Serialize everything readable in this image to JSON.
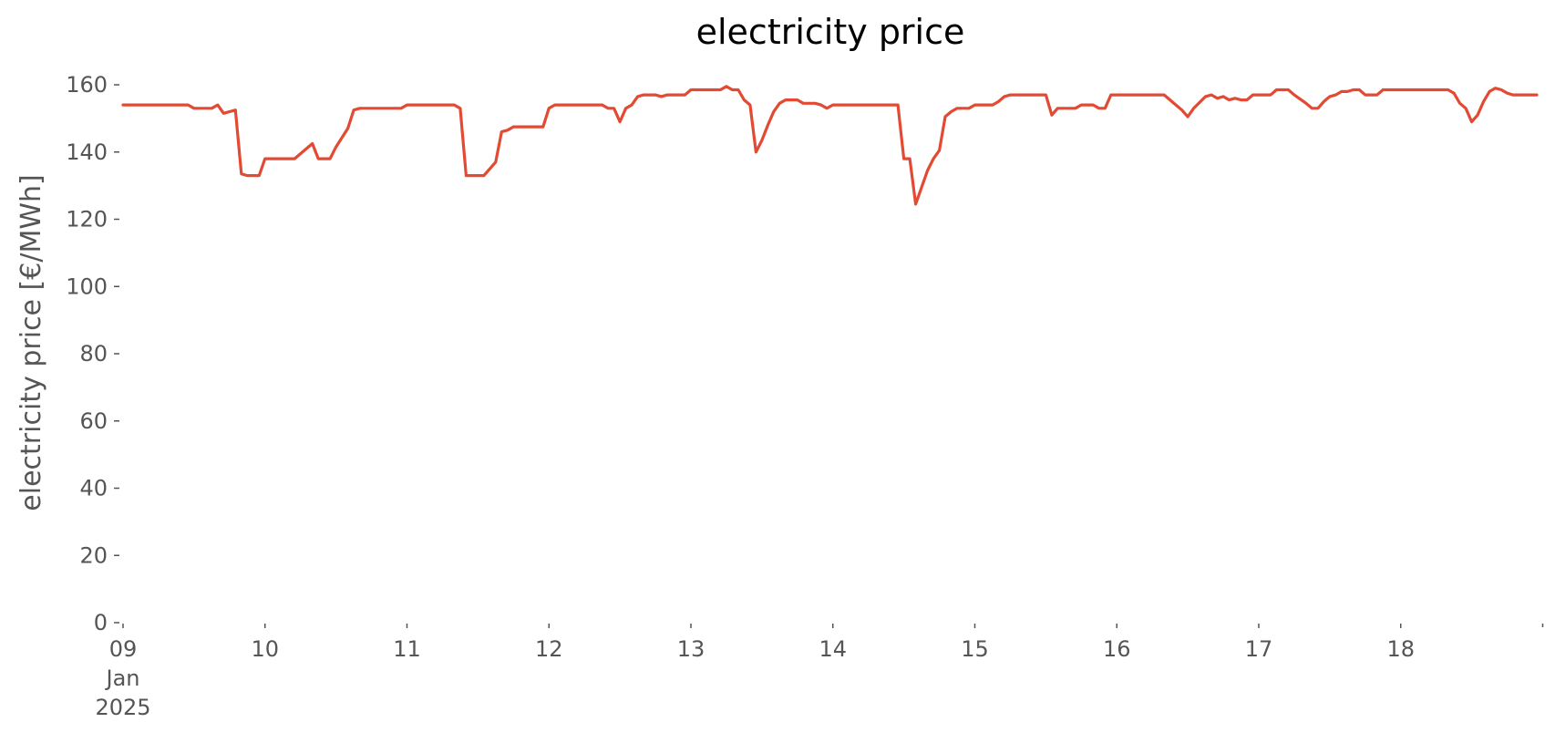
{
  "chart_data": {
    "type": "line",
    "title": "electricity price",
    "xlabel": "",
    "ylabel": "electricity price [€/MWh]",
    "ylim": [
      0,
      160
    ],
    "yticks": [
      0,
      20,
      40,
      60,
      80,
      100,
      120,
      140,
      160
    ],
    "xlim": [
      "2025-01-09T00:00",
      "2025-01-18T23:00"
    ],
    "x_ticks": [
      {
        "date": "2025-01-09T00:00",
        "lines": [
          "09",
          "Jan",
          "2025"
        ]
      },
      {
        "date": "2025-01-10T00:00",
        "lines": [
          "10"
        ]
      },
      {
        "date": "2025-01-11T00:00",
        "lines": [
          "11"
        ]
      },
      {
        "date": "2025-01-12T00:00",
        "lines": [
          "12"
        ]
      },
      {
        "date": "2025-01-13T00:00",
        "lines": [
          "13"
        ]
      },
      {
        "date": "2025-01-14T00:00",
        "lines": [
          "14"
        ]
      },
      {
        "date": "2025-01-15T00:00",
        "lines": [
          "15"
        ]
      },
      {
        "date": "2025-01-16T00:00",
        "lines": [
          "16"
        ]
      },
      {
        "date": "2025-01-17T00:00",
        "lines": [
          "17"
        ]
      },
      {
        "date": "2025-01-18T00:00",
        "lines": [
          "18"
        ]
      }
    ],
    "x_minor_ticks": [
      "2025-01-19T00:00"
    ],
    "grid": false,
    "series": [
      {
        "color": "#e24a33",
        "points": [
          [
            "2025-01-09T00:00",
            154
          ],
          [
            "2025-01-09T11:00",
            154
          ],
          [
            "2025-01-09T12:00",
            153
          ],
          [
            "2025-01-09T15:00",
            153
          ],
          [
            "2025-01-09T16:00",
            154
          ],
          [
            "2025-01-09T17:00",
            151.5
          ],
          [
            "2025-01-09T19:00",
            152.5
          ],
          [
            "2025-01-09T20:00",
            133.5
          ],
          [
            "2025-01-09T21:00",
            133
          ],
          [
            "2025-01-09T23:00",
            133
          ],
          [
            "2025-01-10T00:00",
            138
          ],
          [
            "2025-01-10T05:00",
            138
          ],
          [
            "2025-01-10T08:00",
            142.5
          ],
          [
            "2025-01-10T09:00",
            138
          ],
          [
            "2025-01-10T11:00",
            138
          ],
          [
            "2025-01-10T12:00",
            141.5
          ],
          [
            "2025-01-10T14:00",
            147
          ],
          [
            "2025-01-10T15:00",
            152.5
          ],
          [
            "2025-01-10T16:00",
            153
          ],
          [
            "2025-01-10T23:00",
            153
          ],
          [
            "2025-01-11T00:00",
            154
          ],
          [
            "2025-01-11T08:00",
            154
          ],
          [
            "2025-01-11T09:00",
            153
          ],
          [
            "2025-01-11T10:00",
            133
          ],
          [
            "2025-01-11T13:00",
            133
          ],
          [
            "2025-01-11T15:00",
            137
          ],
          [
            "2025-01-11T16:00",
            146
          ],
          [
            "2025-01-11T17:00",
            146.5
          ],
          [
            "2025-01-11T18:00",
            147.5
          ],
          [
            "2025-01-11T23:00",
            147.5
          ],
          [
            "2025-01-12T00:00",
            153
          ],
          [
            "2025-01-12T01:00",
            154
          ],
          [
            "2025-01-12T09:00",
            154
          ],
          [
            "2025-01-12T10:00",
            153
          ],
          [
            "2025-01-12T11:00",
            153
          ],
          [
            "2025-01-12T12:00",
            149
          ],
          [
            "2025-01-12T13:00",
            153
          ],
          [
            "2025-01-12T14:00",
            154
          ],
          [
            "2025-01-12T15:00",
            156.5
          ],
          [
            "2025-01-12T16:00",
            157
          ],
          [
            "2025-01-12T18:00",
            157
          ],
          [
            "2025-01-12T19:00",
            156.5
          ],
          [
            "2025-01-12T20:00",
            157
          ],
          [
            "2025-01-12T23:00",
            157
          ],
          [
            "2025-01-13T00:00",
            158.5
          ],
          [
            "2025-01-13T05:00",
            158.5
          ],
          [
            "2025-01-13T06:00",
            159.5
          ],
          [
            "2025-01-13T07:00",
            158.5
          ],
          [
            "2025-01-13T08:00",
            158.5
          ],
          [
            "2025-01-13T09:00",
            155.5
          ],
          [
            "2025-01-13T10:00",
            154
          ],
          [
            "2025-01-13T11:00",
            140
          ],
          [
            "2025-01-13T12:00",
            143.5
          ],
          [
            "2025-01-13T13:00",
            148
          ],
          [
            "2025-01-13T14:00",
            152
          ],
          [
            "2025-01-13T15:00",
            154.5
          ],
          [
            "2025-01-13T16:00",
            155.5
          ],
          [
            "2025-01-13T18:00",
            155.5
          ],
          [
            "2025-01-13T19:00",
            154.5
          ],
          [
            "2025-01-13T21:00",
            154.5
          ],
          [
            "2025-01-13T22:00",
            154
          ],
          [
            "2025-01-13T23:00",
            153
          ],
          [
            "2025-01-14T00:00",
            154
          ],
          [
            "2025-01-14T11:00",
            154
          ],
          [
            "2025-01-14T12:00",
            138
          ],
          [
            "2025-01-14T13:00",
            138
          ],
          [
            "2025-01-14T14:00",
            124.5
          ],
          [
            "2025-01-14T15:00",
            129.5
          ],
          [
            "2025-01-14T16:00",
            134.5
          ],
          [
            "2025-01-14T17:00",
            138
          ],
          [
            "2025-01-14T18:00",
            140.5
          ],
          [
            "2025-01-14T19:00",
            150.5
          ],
          [
            "2025-01-14T20:00",
            152
          ],
          [
            "2025-01-14T21:00",
            153
          ],
          [
            "2025-01-14T23:00",
            153
          ],
          [
            "2025-01-15T00:00",
            154
          ],
          [
            "2025-01-15T03:00",
            154
          ],
          [
            "2025-01-15T04:00",
            155
          ],
          [
            "2025-01-15T05:00",
            156.5
          ],
          [
            "2025-01-15T06:00",
            157
          ],
          [
            "2025-01-15T12:00",
            157
          ],
          [
            "2025-01-15T13:00",
            151
          ],
          [
            "2025-01-15T14:00",
            153
          ],
          [
            "2025-01-15T17:00",
            153
          ],
          [
            "2025-01-15T18:00",
            154
          ],
          [
            "2025-01-15T20:00",
            154
          ],
          [
            "2025-01-15T21:00",
            153
          ],
          [
            "2025-01-15T22:00",
            153
          ],
          [
            "2025-01-15T23:00",
            157
          ],
          [
            "2025-01-16T00:00",
            157
          ],
          [
            "2025-01-16T08:00",
            157
          ],
          [
            "2025-01-16T09:00",
            155.5
          ],
          [
            "2025-01-16T11:00",
            152.5
          ],
          [
            "2025-01-16T12:00",
            150.5
          ],
          [
            "2025-01-16T13:00",
            153
          ],
          [
            "2025-01-16T15:00",
            156.5
          ],
          [
            "2025-01-16T16:00",
            157
          ],
          [
            "2025-01-16T17:00",
            156
          ],
          [
            "2025-01-16T18:00",
            156.5
          ],
          [
            "2025-01-16T19:00",
            155.5
          ],
          [
            "2025-01-16T20:00",
            156
          ],
          [
            "2025-01-16T21:00",
            155.5
          ],
          [
            "2025-01-16T22:00",
            155.5
          ],
          [
            "2025-01-16T23:00",
            157
          ],
          [
            "2025-01-17T00:00",
            157
          ],
          [
            "2025-01-17T02:00",
            157
          ],
          [
            "2025-01-17T03:00",
            158.5
          ],
          [
            "2025-01-17T05:00",
            158.5
          ],
          [
            "2025-01-17T06:00",
            157
          ],
          [
            "2025-01-17T08:00",
            154.5
          ],
          [
            "2025-01-17T09:00",
            153
          ],
          [
            "2025-01-17T10:00",
            153
          ],
          [
            "2025-01-17T11:00",
            155
          ],
          [
            "2025-01-17T12:00",
            156.5
          ],
          [
            "2025-01-17T13:00",
            157
          ],
          [
            "2025-01-17T14:00",
            158
          ],
          [
            "2025-01-17T15:00",
            158
          ],
          [
            "2025-01-17T16:00",
            158.5
          ],
          [
            "2025-01-17T17:00",
            158.5
          ],
          [
            "2025-01-17T18:00",
            157
          ],
          [
            "2025-01-17T19:00",
            157
          ],
          [
            "2025-01-17T20:00",
            157
          ],
          [
            "2025-01-17T21:00",
            158.5
          ],
          [
            "2025-01-18T08:00",
            158.5
          ],
          [
            "2025-01-18T09:00",
            157.5
          ],
          [
            "2025-01-18T10:00",
            154.5
          ],
          [
            "2025-01-18T11:00",
            153
          ],
          [
            "2025-01-18T12:00",
            149
          ],
          [
            "2025-01-18T13:00",
            151
          ],
          [
            "2025-01-18T14:00",
            155
          ],
          [
            "2025-01-18T15:00",
            158
          ],
          [
            "2025-01-18T16:00",
            159
          ],
          [
            "2025-01-18T17:00",
            158.5
          ],
          [
            "2025-01-18T18:00",
            157.5
          ],
          [
            "2025-01-18T19:00",
            157
          ],
          [
            "2025-01-18T23:00",
            157
          ]
        ]
      }
    ]
  }
}
